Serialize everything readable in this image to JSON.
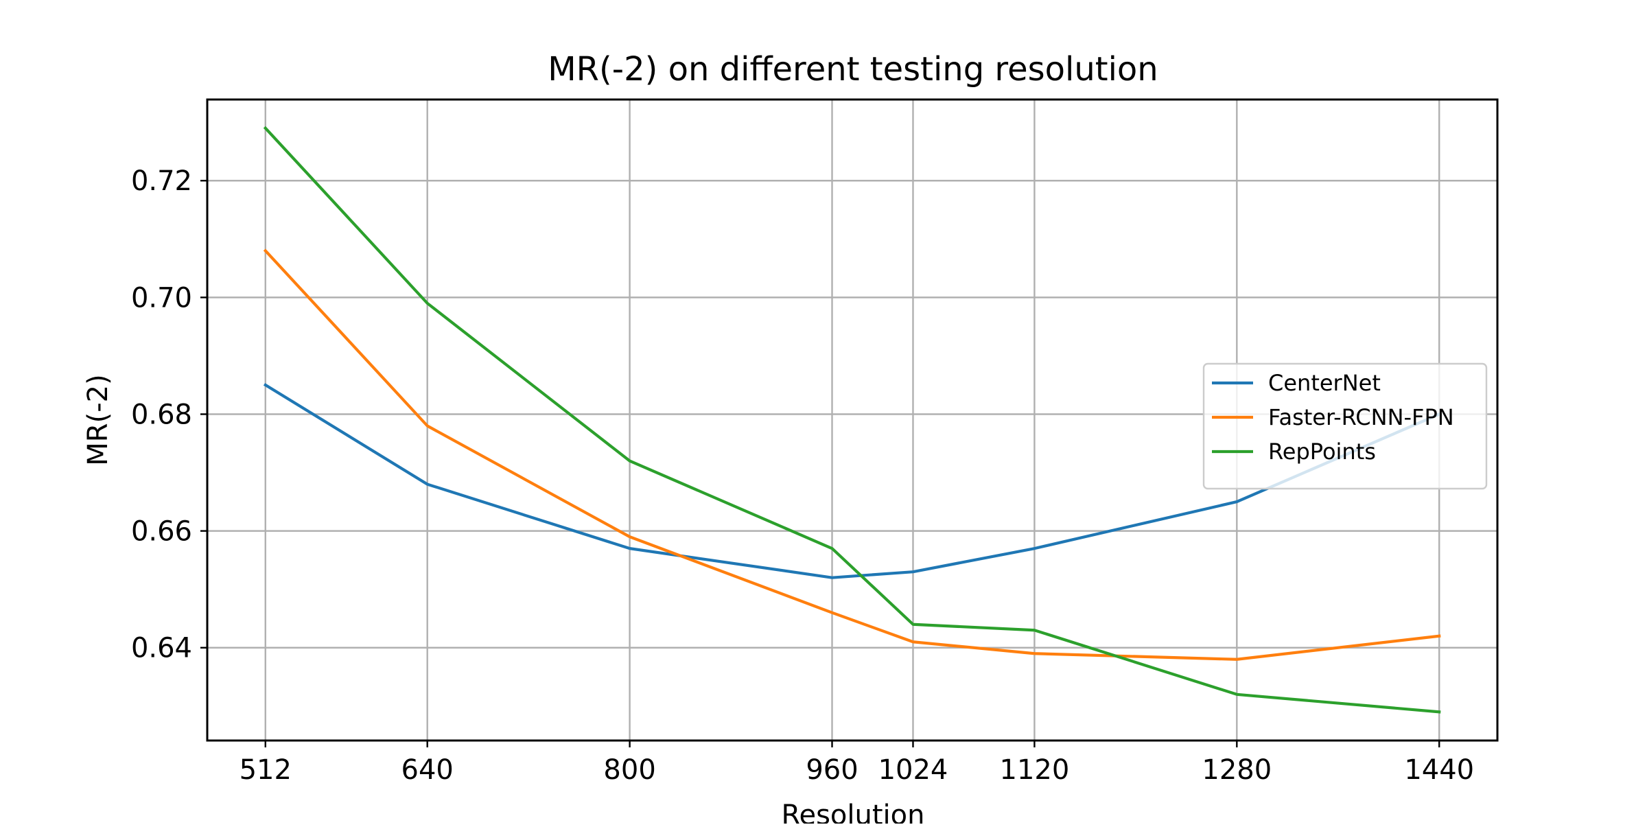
{
  "chart_data": {
    "type": "line",
    "title": "MR(-2) on different testing resolution",
    "xlabel": "Resolution",
    "ylabel": "MR(-2)",
    "x": [
      512,
      640,
      800,
      960,
      1024,
      1120,
      1280,
      1440
    ],
    "x_tick_labels": [
      "512",
      "640",
      "800",
      "960",
      "1024",
      "1120",
      "1280",
      "1440"
    ],
    "y_ticks": [
      0.64,
      0.66,
      0.68,
      0.7,
      0.72
    ],
    "y_tick_labels": [
      "0.64",
      "0.66",
      "0.68",
      "0.70",
      "0.72"
    ],
    "xlim": [
      466,
      1486
    ],
    "ylim": [
      0.6241,
      0.7339
    ],
    "grid": true,
    "legend_position": "center-right",
    "series": [
      {
        "name": "CenterNet",
        "color": "#1f77b4",
        "values": [
          0.685,
          0.668,
          0.657,
          0.652,
          0.653,
          0.657,
          0.665,
          0.68
        ]
      },
      {
        "name": "Faster-RCNN-FPN",
        "color": "#ff7f0e",
        "values": [
          0.708,
          0.678,
          0.659,
          0.646,
          0.641,
          0.639,
          0.638,
          0.642
        ]
      },
      {
        "name": "RepPoints",
        "color": "#2ca02c",
        "values": [
          0.729,
          0.699,
          0.672,
          0.657,
          0.644,
          0.643,
          0.632,
          0.629
        ]
      }
    ]
  }
}
